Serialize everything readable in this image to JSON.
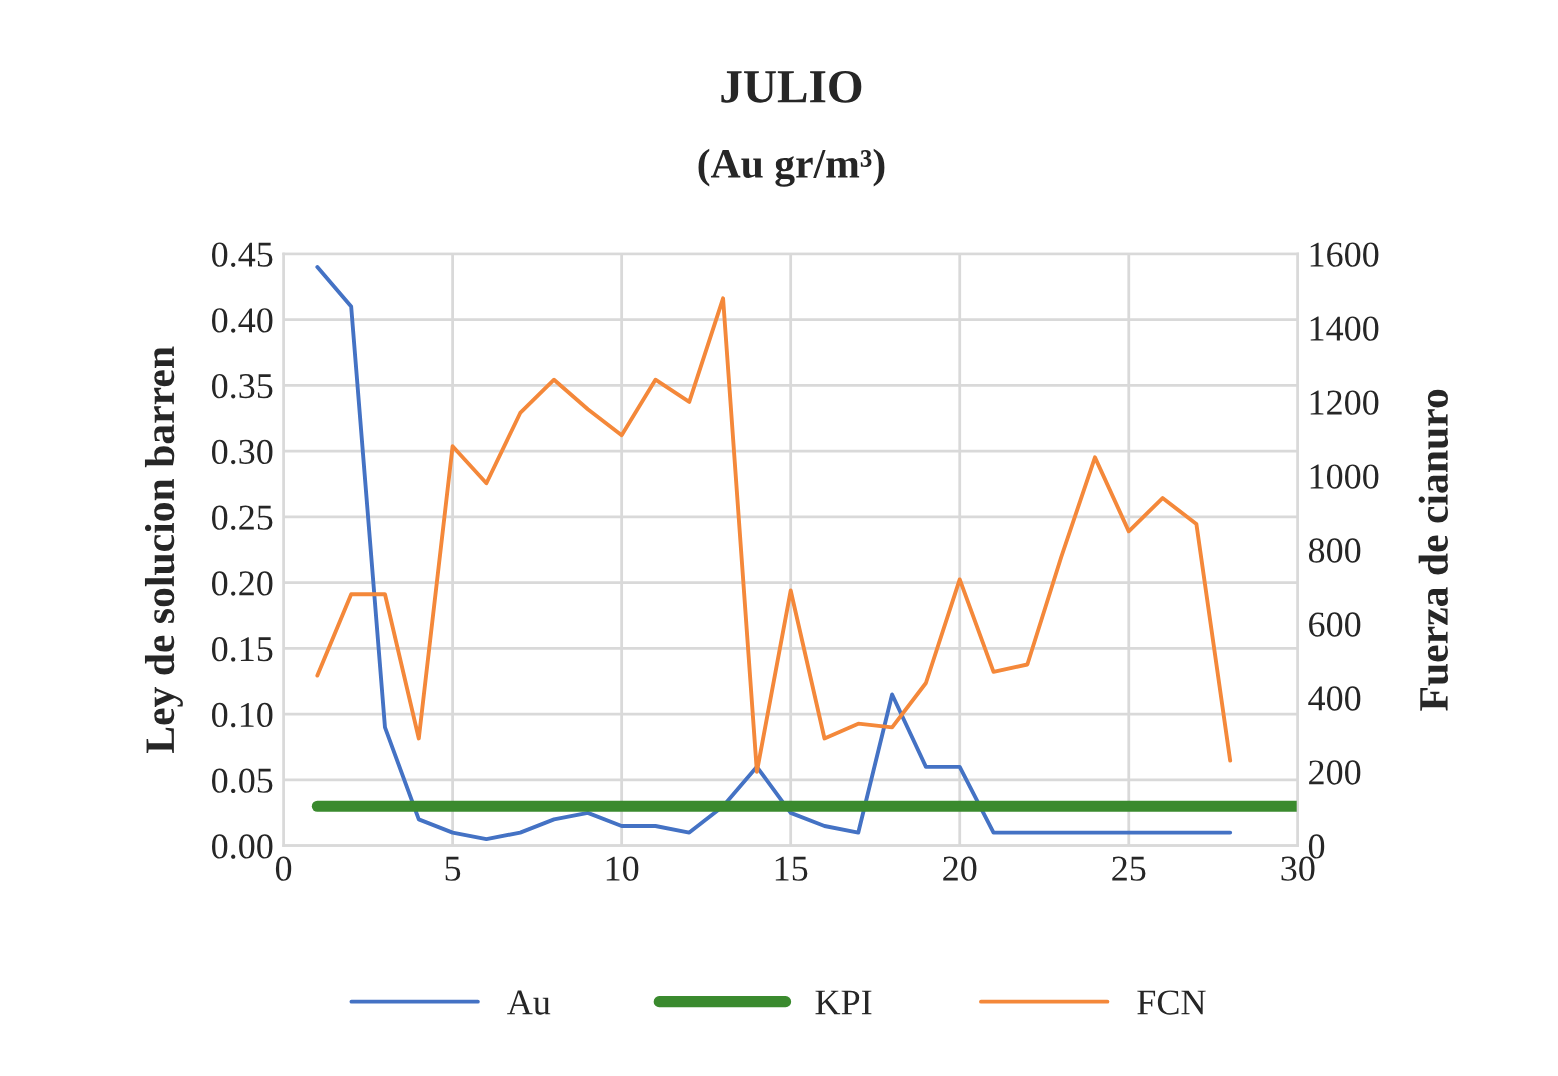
{
  "chart_data": {
    "type": "line",
    "title": "JULIO",
    "subtitle": "(Au gr/m³)",
    "ylabel": "Ley de solucion barren",
    "y2label": "Fuerza de cianuro",
    "xlim": [
      0,
      30
    ],
    "xticks": [
      0,
      5,
      10,
      15,
      20,
      25,
      30
    ],
    "ylim": [
      0,
      0.45
    ],
    "yticks": [
      {
        "value": 0,
        "label": "0.00"
      },
      {
        "value": 0.05,
        "label": "0.05"
      },
      {
        "value": 0.1,
        "label": "0.10"
      },
      {
        "value": 0.15,
        "label": "0.15"
      },
      {
        "value": 0.2,
        "label": "0.20"
      },
      {
        "value": 0.25,
        "label": "0.25"
      },
      {
        "value": 0.3,
        "label": "0.30"
      },
      {
        "value": 0.35,
        "label": "0.35"
      },
      {
        "value": 0.4,
        "label": "0.40"
      },
      {
        "value": 0.45,
        "label": "0.45"
      }
    ],
    "y2lim": [
      0,
      1600
    ],
    "y2ticks": [
      0,
      200,
      400,
      600,
      800,
      1000,
      1200,
      1400,
      1600
    ],
    "grid": true,
    "legend": "bottom",
    "marker": "none",
    "series": [
      {
        "name": "Au",
        "color": "#4472c4",
        "x": [
          1,
          2,
          3,
          4,
          5,
          6,
          7,
          8,
          9,
          10,
          11,
          12,
          13,
          14,
          15,
          16,
          17,
          18,
          19,
          20,
          21,
          22,
          23,
          24,
          25,
          26,
          27,
          28
        ],
        "values": [
          0.44,
          0.41,
          0.09,
          0.02,
          0.01,
          0.005,
          0.01,
          0.02,
          0.025,
          0.015,
          0.015,
          0.01,
          0.03,
          0.06,
          0.025,
          0.015,
          0.01,
          0.115,
          0.06,
          0.06,
          0.01,
          0.01,
          0.01,
          0.01,
          0.01,
          0.01,
          0.01,
          0.01
        ]
      },
      {
        "name": "KPI",
        "color": "#3a8a2e",
        "x": [
          1,
          30
        ],
        "values": [
          0.03,
          0.03
        ]
      },
      {
        "name": "FCN",
        "color": "#f4883a",
        "axis": "y2",
        "x": [
          1,
          2,
          3,
          4,
          5,
          6,
          7,
          8,
          9,
          10,
          11,
          12,
          13,
          14,
          15,
          16,
          17,
          18,
          19,
          20,
          21,
          22,
          23,
          24,
          25,
          26,
          27,
          28
        ],
        "values": [
          460,
          680,
          680,
          290,
          1080,
          980,
          1170,
          1260,
          1180,
          1110,
          1260,
          1200,
          1480,
          200,
          690,
          290,
          330,
          320,
          440,
          720,
          470,
          490,
          780,
          1050,
          850,
          940,
          870,
          230
        ]
      }
    ]
  }
}
